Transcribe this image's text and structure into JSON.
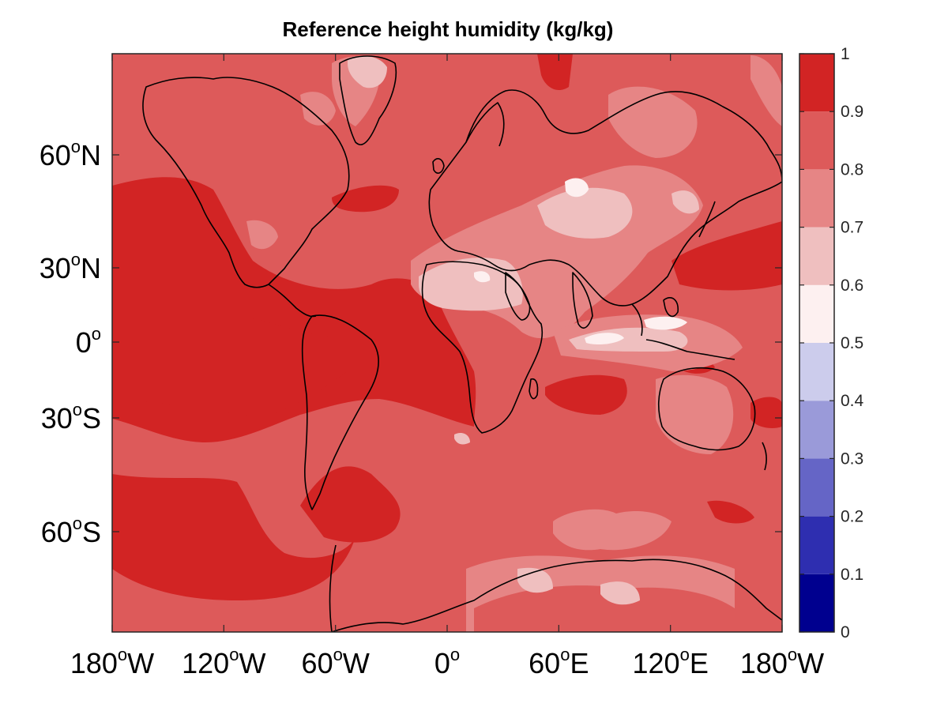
{
  "title": "Reference height humidity (kg/kg)",
  "colorbar": {
    "ticks": [
      "0",
      "0.1",
      "0.2",
      "0.3",
      "0.4",
      "0.5",
      "0.6",
      "0.7",
      "0.8",
      "0.9",
      "1"
    ],
    "levels": [
      {
        "min": 0.0,
        "max": 0.1,
        "color": "#00008f"
      },
      {
        "min": 0.1,
        "max": 0.2,
        "color": "#2e2eb0"
      },
      {
        "min": 0.2,
        "max": 0.3,
        "color": "#6565c6"
      },
      {
        "min": 0.3,
        "max": 0.4,
        "color": "#9a9ad9"
      },
      {
        "min": 0.4,
        "max": 0.5,
        "color": "#ccccec"
      },
      {
        "min": 0.5,
        "max": 0.6,
        "color": "#fdf0f0"
      },
      {
        "min": 0.6,
        "max": 0.7,
        "color": "#efbfbf"
      },
      {
        "min": 0.7,
        "max": 0.8,
        "color": "#e68585"
      },
      {
        "min": 0.8,
        "max": 0.9,
        "color": "#dd5a5a"
      },
      {
        "min": 0.9,
        "max": 1.0,
        "color": "#d22424"
      }
    ]
  },
  "axes": {
    "x_ticks": [
      {
        "deg": "180",
        "suffix": "W"
      },
      {
        "deg": "120",
        "suffix": "W"
      },
      {
        "deg": "60",
        "suffix": "W"
      },
      {
        "deg": "0",
        "suffix": ""
      },
      {
        "deg": "60",
        "suffix": "E"
      },
      {
        "deg": "120",
        "suffix": "E"
      },
      {
        "deg": "180",
        "suffix": "W"
      }
    ],
    "y_ticks": [
      {
        "deg": "60",
        "suffix": "N"
      },
      {
        "deg": "30",
        "suffix": "N"
      },
      {
        "deg": "0",
        "suffix": ""
      },
      {
        "deg": "30",
        "suffix": "S"
      },
      {
        "deg": "60",
        "suffix": "S"
      }
    ]
  },
  "map": {
    "variable": "Reference height humidity",
    "units": "kg/kg",
    "projection": "Mercator",
    "background_level_color": "#dd5a5a",
    "coastline_color": "#000000"
  }
}
